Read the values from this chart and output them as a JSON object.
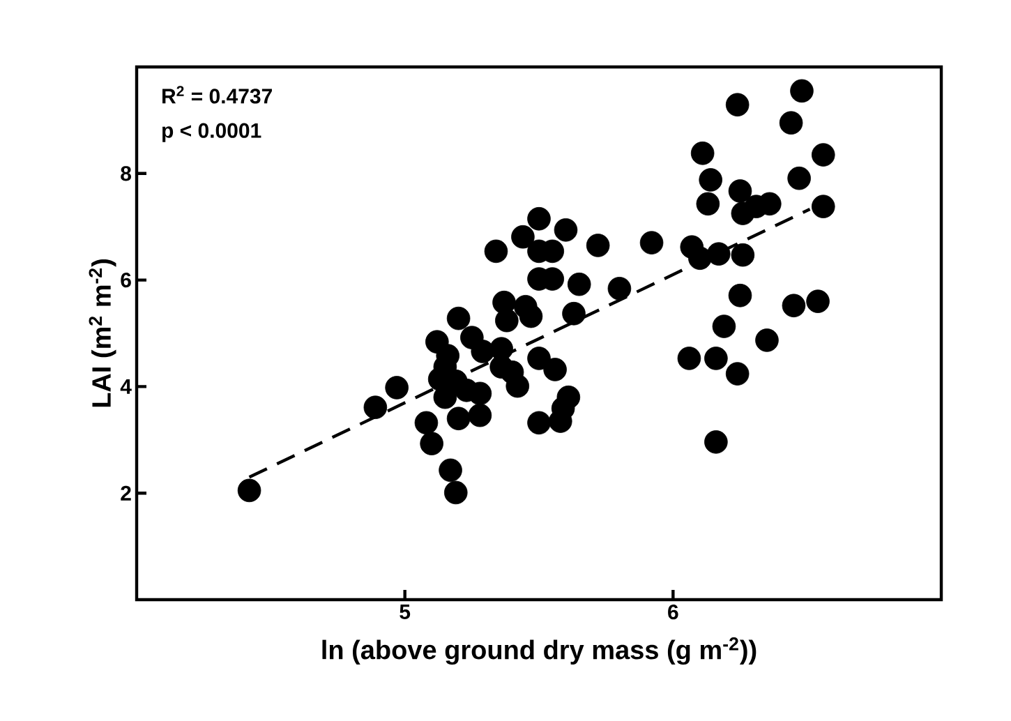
{
  "chart_data": {
    "type": "scatter",
    "xlabel": "ln (above ground dry mass (g m$^{-2}$))",
    "ylabel": "LAI (m$^{2}$ m$^{-2}$)",
    "annotations": [
      "R$^{2}$ = 0.4737",
      "p < 0.0001"
    ],
    "xlim": [
      4,
      7
    ],
    "ylim": [
      0,
      10
    ],
    "xticks": [
      5,
      6
    ],
    "yticks": [
      2,
      4,
      6,
      8
    ],
    "grid": false,
    "series": [
      {
        "color": "#000000",
        "marker": "circle",
        "x": [
          4.42,
          4.89,
          4.97,
          5.08,
          5.1,
          5.17,
          5.19,
          5.12,
          5.2,
          5.15,
          5.5,
          5.6,
          5.44,
          5.34,
          5.5,
          5.55,
          5.72,
          5.5,
          5.55,
          5.65,
          5.8,
          5.63,
          5.37,
          5.45,
          5.38,
          5.47,
          5.25,
          5.16,
          5.29,
          5.36,
          5.5,
          5.56,
          5.36,
          5.13,
          5.19,
          5.42,
          5.15,
          5.28,
          5.23,
          5.61,
          5.59,
          5.5,
          5.58,
          5.28,
          5.2,
          5.4,
          6.48,
          6.24,
          6.44,
          6.11,
          6.56,
          6.14,
          6.47,
          6.13,
          6.25,
          6.26,
          6.31,
          6.36,
          6.56,
          5.92,
          6.07,
          6.1,
          6.17,
          6.26,
          6.25,
          6.45,
          6.54,
          6.19,
          6.35,
          6.06,
          6.16,
          6.24,
          6.16
        ],
        "values": [
          2.05,
          3.61,
          3.98,
          3.32,
          2.93,
          2.43,
          2.01,
          4.84,
          5.28,
          4.37,
          7.15,
          6.94,
          6.81,
          6.54,
          6.54,
          6.54,
          6.65,
          6.02,
          6.02,
          5.92,
          5.84,
          5.37,
          5.58,
          5.5,
          5.24,
          5.32,
          4.92,
          4.58,
          4.66,
          4.71,
          4.53,
          4.32,
          4.37,
          4.14,
          4.1,
          4.01,
          3.8,
          3.87,
          3.93,
          3.8,
          3.59,
          3.32,
          3.35,
          3.46,
          3.4,
          4.27,
          9.55,
          9.29,
          8.95,
          8.38,
          8.35,
          7.88,
          7.91,
          7.43,
          7.67,
          7.25,
          7.38,
          7.43,
          7.38,
          6.7,
          6.62,
          6.41,
          6.49,
          6.47,
          5.71,
          5.52,
          5.6,
          5.13,
          4.87,
          4.53,
          4.53,
          4.24,
          2.96
        ]
      },
      {
        "type": "line",
        "color": "#000000",
        "marker": "none",
        "line_style": "dashed",
        "x": [
          4.42,
          6.51
        ],
        "values": [
          2.3,
          7.33
        ]
      }
    ]
  }
}
